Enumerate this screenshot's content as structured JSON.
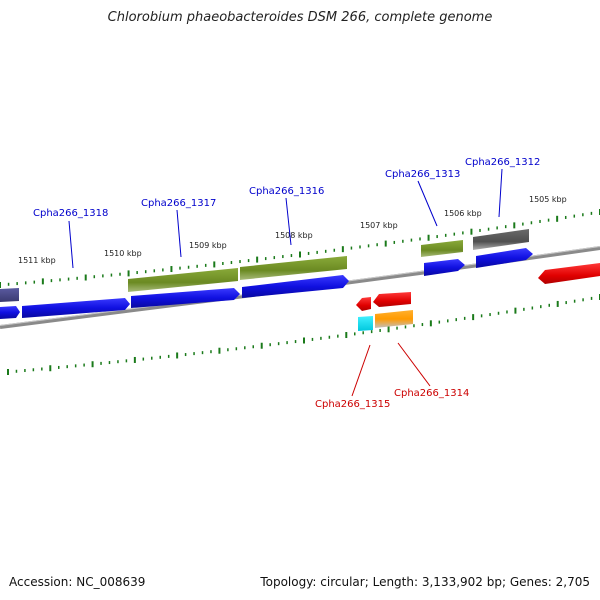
{
  "title": "Chlorobium phaeobacteroides DSM 266, complete genome",
  "footer": {
    "accession_label": "Accession:",
    "accession": "NC_008639",
    "topology_label": "Topology:",
    "topology": "circular",
    "length_label": "Length:",
    "length": "3,133,902 bp",
    "genes_label": "Genes:",
    "genes": "2,705"
  },
  "ticks": [
    {
      "label": "1511 kbp"
    },
    {
      "label": "1510 kbp"
    },
    {
      "label": "1509 kbp"
    },
    {
      "label": "1508 kbp"
    },
    {
      "label": "1507 kbp"
    },
    {
      "label": "1506 kbp"
    },
    {
      "label": "1505 kbp"
    }
  ],
  "gene_labels_top": [
    {
      "name": "Cpha266_1318",
      "color": "#0000cc"
    },
    {
      "name": "Cpha266_1317",
      "color": "#0000cc"
    },
    {
      "name": "Cpha266_1316",
      "color": "#0000cc"
    },
    {
      "name": "Cpha266_1313",
      "color": "#0000cc"
    },
    {
      "name": "Cpha266_1312",
      "color": "#0000cc"
    }
  ],
  "gene_labels_bottom": [
    {
      "name": "Cpha266_1315",
      "color": "#cc0000"
    },
    {
      "name": "Cpha266_1314",
      "color": "#cc0000"
    }
  ],
  "colors": {
    "backbone": "#7a7a7a",
    "tick": "#1a7a1a",
    "blue_gene": "#1010e0",
    "olive_gene": "#6b8a22",
    "gray_gene": "#5a5a5a",
    "slate_gene": "#4a4a8a",
    "red_gene": "#e00000",
    "cyan_gene": "#00e0ee",
    "orange_gene": "#ff9a00"
  }
}
